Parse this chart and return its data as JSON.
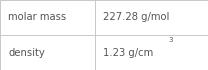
{
  "rows": [
    {
      "label": "molar mass",
      "value": "227.28 g/mol",
      "superscript": null
    },
    {
      "label": "density",
      "value": "1.23 g/cm",
      "superscript": "3"
    }
  ],
  "bg_color": "#ffffff",
  "border_color": "#c8c8c8",
  "text_color": "#555555",
  "font_size": 7.2,
  "sup_font_size": 5.0,
  "col_split": 0.455
}
